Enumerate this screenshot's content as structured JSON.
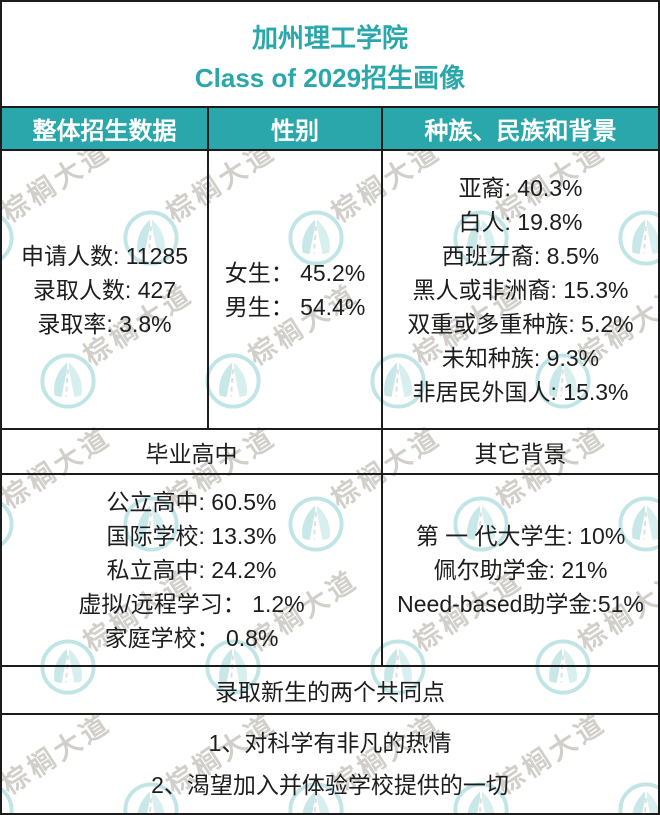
{
  "title": {
    "line1": "加州理工学院",
    "line2": "Class of 2029招生画像"
  },
  "table": {
    "col_headers": [
      "整体招生数据",
      "性别",
      "种族、民族和背景"
    ],
    "overall_stats": [
      "申请人数: 11285",
      "录取人数: 427",
      "录取率: 3.8%"
    ],
    "gender": [
      "女生： 45.2%",
      "男生： 54.4%"
    ],
    "ethnicity": [
      "亚裔: 40.3%",
      "白人: 19.8%",
      "西班牙裔: 8.5%",
      "黑人或非洲裔: 15.3%",
      "双重或多重种族: 5.2%",
      "未知种族: 9.3%",
      "非居民外国人: 15.3%"
    ],
    "sub_headers": {
      "left": "毕业高中",
      "right": "其它背景"
    },
    "high_school": [
      "公立高中: 60.5%",
      "国际学校: 13.3%",
      "私立高中: 24.2%",
      "虚拟/远程学习： 1.2%",
      "家庭学校： 0.8%"
    ],
    "other_background": [
      "第 一 代大学生: 10%",
      "佩尔助学金: 21%",
      "Need-based助学金:51%"
    ],
    "common_points_header": "录取新生的两个共同点",
    "common_points": [
      "1、对科学有非凡的热情",
      "2、渴望加入并体验学校提供的一切"
    ]
  },
  "watermark": {
    "text": "棕榈大道",
    "logo": "palm-avenue-logo"
  },
  "colors": {
    "teal": "#2aa7ab",
    "text": "#1d1d1d",
    "border": "#1c1c1c",
    "watermark_gray": "#d2cfca"
  },
  "chart_data": {
    "type": "table",
    "title": "加州理工学院 Class of 2029招生画像",
    "sections": [
      {
        "header": "整体招生数据",
        "rows": [
          [
            "申请人数",
            11285
          ],
          [
            "录取人数",
            427
          ],
          [
            "录取率",
            "3.8%"
          ]
        ]
      },
      {
        "header": "性别",
        "rows": [
          [
            "女生",
            "45.2%"
          ],
          [
            "男生",
            "54.4%"
          ]
        ]
      },
      {
        "header": "种族、民族和背景",
        "rows": [
          [
            "亚裔",
            "40.3%"
          ],
          [
            "白人",
            "19.8%"
          ],
          [
            "西班牙裔",
            "8.5%"
          ],
          [
            "黑人或非洲裔",
            "15.3%"
          ],
          [
            "双重或多重种族",
            "5.2%"
          ],
          [
            "未知种族",
            "9.3%"
          ],
          [
            "非居民外国人",
            "15.3%"
          ]
        ]
      },
      {
        "header": "毕业高中",
        "rows": [
          [
            "公立高中",
            "60.5%"
          ],
          [
            "国际学校",
            "13.3%"
          ],
          [
            "私立高中",
            "24.2%"
          ],
          [
            "虚拟/远程学习",
            "1.2%"
          ],
          [
            "家庭学校",
            "0.8%"
          ]
        ]
      },
      {
        "header": "其它背景",
        "rows": [
          [
            "第一代大学生",
            "10%"
          ],
          [
            "佩尔助学金",
            "21%"
          ],
          [
            "Need-based助学金",
            "51%"
          ]
        ]
      },
      {
        "header": "录取新生的两个共同点",
        "rows": [
          [
            "1",
            "对科学有非凡的热情"
          ],
          [
            "2",
            "渴望加入并体验学校提供的一切"
          ]
        ]
      }
    ]
  }
}
